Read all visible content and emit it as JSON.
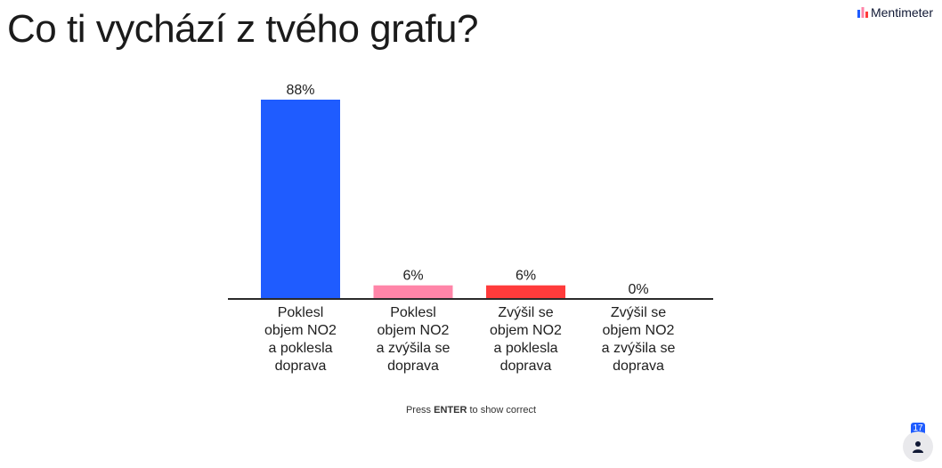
{
  "title": "Co ti vychází z tvého grafu?",
  "brand": {
    "name": "Mentimeter"
  },
  "hint": {
    "prefix": "Press ",
    "key": "ENTER",
    "suffix": " to show correct"
  },
  "participants": {
    "count": "17"
  },
  "icons": {
    "logo": "mentimeter-logo-icon",
    "participants": "person-icon"
  },
  "chart_data": {
    "type": "bar",
    "categories": [
      [
        "Poklesl",
        "objem NO2",
        "a poklesla",
        "doprava"
      ],
      [
        "Poklesl",
        "objem NO2",
        "a zvýšila se",
        "doprava"
      ],
      [
        "Zvýšil se",
        "objem NO2",
        "a poklesla",
        "doprava"
      ],
      [
        "Zvýšil se",
        "objem NO2",
        "a zvýšila se",
        "doprava"
      ]
    ],
    "values": [
      88,
      6,
      6,
      0
    ],
    "value_labels": [
      "88%",
      "6%",
      "6%",
      "0%"
    ],
    "colors": [
      "#1f5cff",
      "#ff85a8",
      "#ff3b3b",
      "#cccccc"
    ],
    "ylim": [
      0,
      100
    ],
    "grid": false,
    "legend": "none",
    "title": "",
    "xlabel": "",
    "ylabel": ""
  }
}
